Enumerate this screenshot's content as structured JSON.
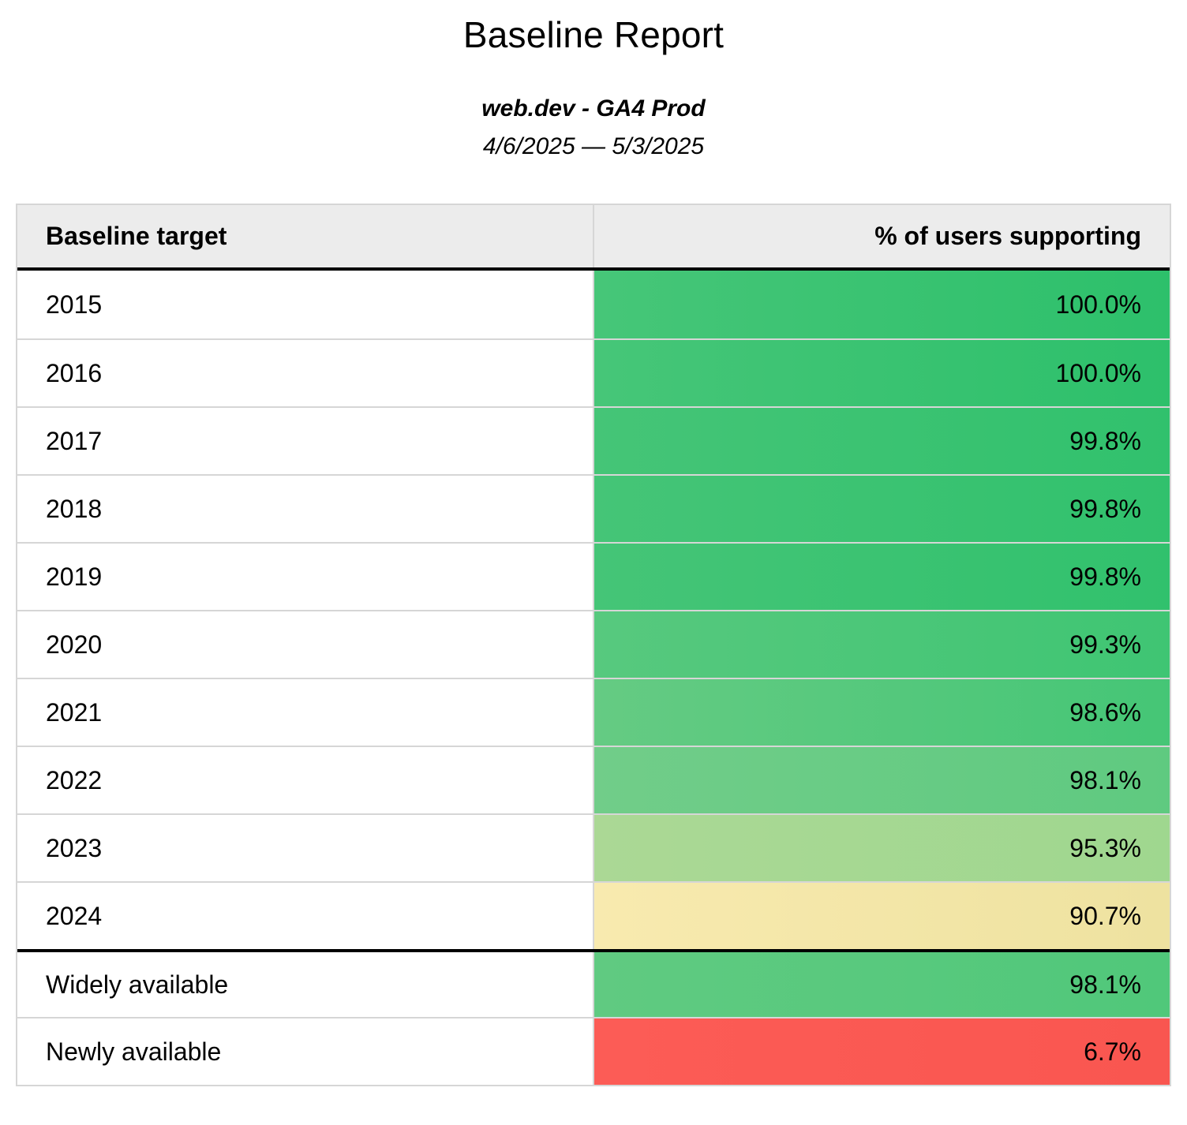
{
  "title": "Baseline Report",
  "subtitle": "web.dev - GA4 Prod",
  "date_range": "4/6/2025 — 5/3/2025",
  "table": {
    "columns": [
      "Baseline target",
      "% of users supporting"
    ],
    "rows": [
      {
        "label": "2015",
        "value": "100.0%",
        "group": "year",
        "color_left": "#46c678",
        "color_right": "#2dc06b"
      },
      {
        "label": "2016",
        "value": "100.0%",
        "group": "year",
        "color_left": "#46c678",
        "color_right": "#2dc06b"
      },
      {
        "label": "2017",
        "value": "99.8%",
        "group": "year",
        "color_left": "#45c577",
        "color_right": "#31c16d"
      },
      {
        "label": "2018",
        "value": "99.8%",
        "group": "year",
        "color_left": "#45c577",
        "color_right": "#31c16d"
      },
      {
        "label": "2019",
        "value": "99.8%",
        "group": "year",
        "color_left": "#45c577",
        "color_right": "#31c16d"
      },
      {
        "label": "2020",
        "value": "99.3%",
        "group": "year",
        "color_left": "#57c97e",
        "color_right": "#3fc573"
      },
      {
        "label": "2021",
        "value": "98.6%",
        "group": "year",
        "color_left": "#65cb83",
        "color_right": "#45c676"
      },
      {
        "label": "2022",
        "value": "98.1%",
        "group": "year",
        "color_left": "#71cd89",
        "color_right": "#5fca80"
      },
      {
        "label": "2023",
        "value": "95.3%",
        "group": "year",
        "color_left": "#abd895",
        "color_right": "#9fd78f"
      },
      {
        "label": "2024",
        "value": "90.7%",
        "group": "year",
        "color_left": "#f8eaaf",
        "color_right": "#eee2a0"
      },
      {
        "label": "Widely available",
        "value": "98.1%",
        "group": "summary",
        "color_left": "#60ca81",
        "color_right": "#50c87a"
      },
      {
        "label": "Newly available",
        "value": "6.7%",
        "group": "summary",
        "color_left": "#fc5c56",
        "color_right": "#f95650"
      }
    ]
  },
  "colors": {
    "header_bg": "#ececec",
    "border_gray": "#d6d6d6",
    "section_divider": "#000000"
  },
  "chart_data": {
    "type": "table",
    "title": "Baseline Report",
    "subtitle": "web.dev - GA4 Prod",
    "date_range": "4/6/2025 — 5/3/2025",
    "columns": [
      "Baseline target",
      "% of users supporting"
    ],
    "categories": [
      "2015",
      "2016",
      "2017",
      "2018",
      "2019",
      "2020",
      "2021",
      "2022",
      "2023",
      "2024",
      "Widely available",
      "Newly available"
    ],
    "values": [
      100.0,
      100.0,
      99.8,
      99.8,
      99.8,
      99.3,
      98.6,
      98.1,
      95.3,
      90.7,
      98.1,
      6.7
    ],
    "layout_hints": {
      "value_format": "percent_one_decimal",
      "color_scale": "red-yellow-green heatmap on value column",
      "sections": [
        "year targets 2015-2024",
        "summary: Widely available / Newly available"
      ]
    }
  }
}
